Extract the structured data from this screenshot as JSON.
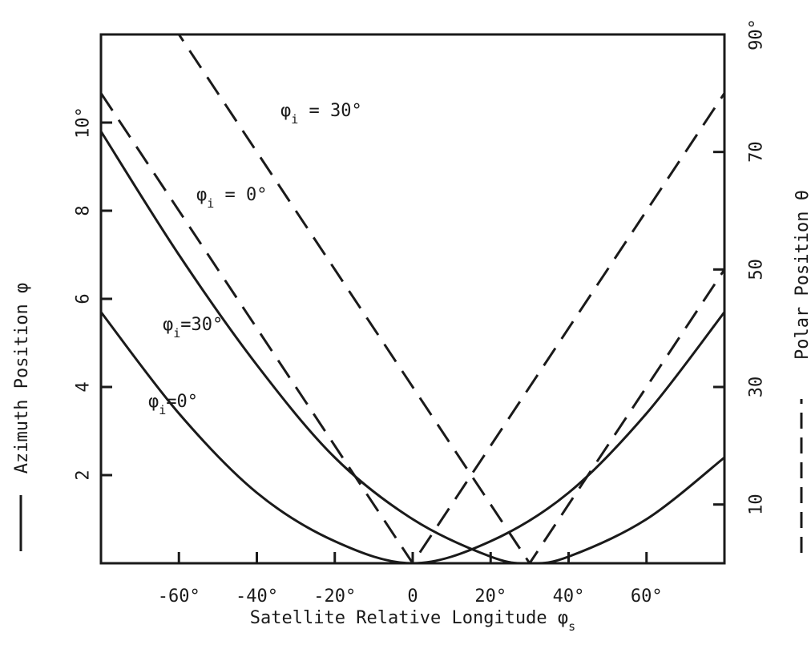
{
  "chart_data": {
    "type": "line",
    "title": "",
    "xlabel": "Satellite Relative Longitude",
    "xlabel_symbol": "φ",
    "xlabel_symbol_sub": "s",
    "ylabel_left": "Azimuth Position φ",
    "ylabel_right": "Polar Position θ",
    "xlim": [
      -80,
      80
    ],
    "ylim_left": [
      0,
      12
    ],
    "ylim_right": [
      0,
      90
    ],
    "x_ticks": [
      -60,
      -40,
      -20,
      0,
      20,
      40,
      60
    ],
    "x_tick_labels": [
      "-60°",
      "-40°",
      "-20°",
      "0",
      "20°",
      "40°",
      "60°"
    ],
    "y_left_ticks": [
      2,
      4,
      6,
      8,
      10
    ],
    "y_left_tick_labels": [
      "2",
      "4",
      "6",
      "8",
      "10°"
    ],
    "y_right_ticks": [
      10,
      30,
      50,
      70,
      90
    ],
    "y_right_tick_labels": [
      "10",
      "30",
      "50",
      "70",
      "90°"
    ],
    "grid": false,
    "legend": "none",
    "series": [
      {
        "name": "φi=0°",
        "axis": "left",
        "style": "solid",
        "x": [
          -80,
          -60,
          -40,
          -20,
          0,
          20,
          40,
          60,
          80
        ],
        "y": [
          5.7,
          3.4,
          1.6,
          0.5,
          0.0,
          0.5,
          1.6,
          3.4,
          5.7
        ]
      },
      {
        "name": "φi=30°",
        "axis": "left",
        "style": "solid",
        "x": [
          -80,
          -60,
          -40,
          -20,
          0,
          20,
          30,
          40,
          60,
          80
        ],
        "y": [
          9.8,
          7.0,
          4.5,
          2.4,
          1.0,
          0.15,
          0.0,
          0.15,
          1.0,
          2.4
        ]
      },
      {
        "name": "φi = 0°",
        "axis": "right",
        "style": "dashed",
        "x": [
          -80,
          0,
          80
        ],
        "y": [
          80,
          0,
          80
        ]
      },
      {
        "name": "φi = 30°",
        "axis": "right",
        "style": "dashed",
        "x": [
          -80,
          -53,
          30,
          80
        ],
        "y": [
          110,
          83,
          0,
          50
        ]
      }
    ],
    "annotations": [
      {
        "label": "φ",
        "sub": "i",
        "text": " = 30°",
        "series": "φi = 30°"
      },
      {
        "label": "φ",
        "sub": "i",
        "text": " = 0°",
        "series": "φi = 0°"
      },
      {
        "label": "φ",
        "sub": "i",
        "text": "=30°",
        "series": "φi=30°"
      },
      {
        "label": "φ",
        "sub": "i",
        "text": "=0°",
        "series": "φi=0°"
      }
    ],
    "colors": {
      "ink": "#1a1a1a",
      "background": "#ffffff"
    }
  }
}
